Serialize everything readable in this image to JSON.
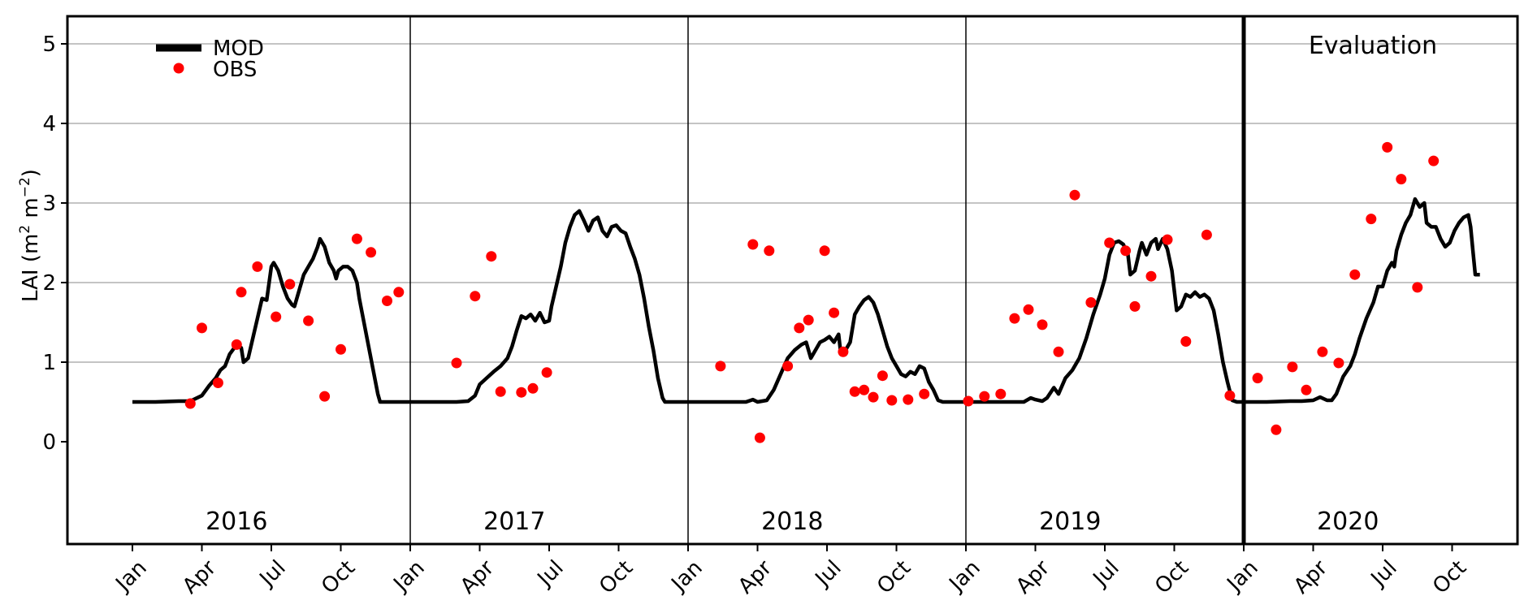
{
  "chart_data": {
    "type": "line",
    "title": "",
    "ylabel": {
      "text": "LAI (m",
      "sup1": "2",
      "mid": " m",
      "sup2": "−2",
      "end": ")"
    },
    "xlabel": "",
    "ylim": [
      -1.3,
      5.3
    ],
    "yticks": [
      0,
      1,
      2,
      3,
      4,
      5
    ],
    "grid": "horizontal",
    "legend_position": "top-left",
    "legend": [
      {
        "name": "MOD",
        "style": "line"
      },
      {
        "name": "OBS",
        "style": "marker"
      }
    ],
    "colors": {
      "mod": "#000000",
      "obs": "#ff0000",
      "grid": "#b0b0b0"
    },
    "year_panels": [
      "2016",
      "2017",
      "2018",
      "2019",
      "2020"
    ],
    "annotation": "Evaluation",
    "xticks": [
      {
        "t": 0,
        "label": "Jan"
      },
      {
        "t": 3,
        "label": "Apr"
      },
      {
        "t": 6,
        "label": "Jul"
      },
      {
        "t": 9,
        "label": "Oct"
      },
      {
        "t": 12,
        "label": "Jan"
      },
      {
        "t": 15,
        "label": "Apr"
      },
      {
        "t": 18,
        "label": "Jul"
      },
      {
        "t": 21,
        "label": "Oct"
      },
      {
        "t": 24,
        "label": "Jan"
      },
      {
        "t": 27,
        "label": "Apr"
      },
      {
        "t": 30,
        "label": "Jul"
      },
      {
        "t": 33,
        "label": "Oct"
      },
      {
        "t": 36,
        "label": "Jan"
      },
      {
        "t": 39,
        "label": "Apr"
      },
      {
        "t": 42,
        "label": "Jul"
      },
      {
        "t": 45,
        "label": "Oct"
      },
      {
        "t": 48,
        "label": "Jan"
      },
      {
        "t": 51,
        "label": "Apr"
      },
      {
        "t": 54,
        "label": "Jul"
      },
      {
        "t": 57,
        "label": "Oct"
      }
    ],
    "year_boundaries": [
      12,
      24,
      36
    ],
    "evaluation_boundary": 48,
    "series": [
      {
        "name": "MOD",
        "points": [
          [
            0.0,
            0.5
          ],
          [
            1.0,
            0.5
          ],
          [
            2.0,
            0.51
          ],
          [
            2.5,
            0.51
          ],
          [
            3.0,
            0.58
          ],
          [
            3.3,
            0.7
          ],
          [
            3.6,
            0.8
          ],
          [
            3.8,
            0.9
          ],
          [
            4.0,
            0.95
          ],
          [
            4.2,
            1.1
          ],
          [
            4.5,
            1.22
          ],
          [
            4.7,
            1.18
          ],
          [
            4.8,
            1.0
          ],
          [
            5.0,
            1.05
          ],
          [
            5.2,
            1.3
          ],
          [
            5.4,
            1.55
          ],
          [
            5.6,
            1.8
          ],
          [
            5.8,
            1.78
          ],
          [
            6.0,
            2.2
          ],
          [
            6.1,
            2.25
          ],
          [
            6.3,
            2.15
          ],
          [
            6.5,
            1.95
          ],
          [
            6.7,
            1.8
          ],
          [
            6.9,
            1.72
          ],
          [
            7.0,
            1.7
          ],
          [
            7.2,
            1.9
          ],
          [
            7.4,
            2.1
          ],
          [
            7.6,
            2.2
          ],
          [
            7.8,
            2.3
          ],
          [
            8.0,
            2.45
          ],
          [
            8.1,
            2.55
          ],
          [
            8.3,
            2.45
          ],
          [
            8.5,
            2.25
          ],
          [
            8.7,
            2.15
          ],
          [
            8.8,
            2.05
          ],
          [
            8.9,
            2.15
          ],
          [
            9.1,
            2.2
          ],
          [
            9.3,
            2.2
          ],
          [
            9.5,
            2.15
          ],
          [
            9.7,
            2.0
          ],
          [
            9.8,
            1.8
          ],
          [
            10.0,
            1.5
          ],
          [
            10.2,
            1.2
          ],
          [
            10.4,
            0.9
          ],
          [
            10.6,
            0.6
          ],
          [
            10.7,
            0.5
          ],
          [
            11.0,
            0.5
          ],
          [
            12.0,
            0.5
          ],
          [
            13.0,
            0.5
          ],
          [
            14.0,
            0.5
          ],
          [
            14.5,
            0.51
          ],
          [
            14.8,
            0.58
          ],
          [
            15.0,
            0.72
          ],
          [
            15.3,
            0.8
          ],
          [
            15.6,
            0.88
          ],
          [
            15.9,
            0.95
          ],
          [
            16.2,
            1.05
          ],
          [
            16.4,
            1.2
          ],
          [
            16.6,
            1.4
          ],
          [
            16.8,
            1.58
          ],
          [
            17.0,
            1.55
          ],
          [
            17.2,
            1.6
          ],
          [
            17.4,
            1.52
          ],
          [
            17.6,
            1.62
          ],
          [
            17.8,
            1.5
          ],
          [
            18.0,
            1.52
          ],
          [
            18.1,
            1.7
          ],
          [
            18.3,
            1.95
          ],
          [
            18.5,
            2.2
          ],
          [
            18.7,
            2.5
          ],
          [
            18.9,
            2.7
          ],
          [
            19.1,
            2.85
          ],
          [
            19.3,
            2.9
          ],
          [
            19.5,
            2.78
          ],
          [
            19.7,
            2.65
          ],
          [
            19.9,
            2.78
          ],
          [
            20.1,
            2.82
          ],
          [
            20.3,
            2.65
          ],
          [
            20.5,
            2.58
          ],
          [
            20.7,
            2.7
          ],
          [
            20.9,
            2.72
          ],
          [
            21.1,
            2.65
          ],
          [
            21.3,
            2.62
          ],
          [
            21.5,
            2.45
          ],
          [
            21.7,
            2.3
          ],
          [
            21.9,
            2.1
          ],
          [
            22.1,
            1.8
          ],
          [
            22.3,
            1.45
          ],
          [
            22.5,
            1.15
          ],
          [
            22.7,
            0.8
          ],
          [
            22.9,
            0.55
          ],
          [
            23.0,
            0.5
          ],
          [
            24.0,
            0.5
          ],
          [
            25.0,
            0.5
          ],
          [
            26.0,
            0.5
          ],
          [
            26.5,
            0.5
          ],
          [
            26.8,
            0.53
          ],
          [
            27.0,
            0.5
          ],
          [
            27.4,
            0.52
          ],
          [
            27.7,
            0.65
          ],
          [
            28.0,
            0.85
          ],
          [
            28.3,
            1.05
          ],
          [
            28.6,
            1.15
          ],
          [
            28.9,
            1.22
          ],
          [
            29.1,
            1.25
          ],
          [
            29.3,
            1.05
          ],
          [
            29.5,
            1.15
          ],
          [
            29.7,
            1.25
          ],
          [
            29.9,
            1.28
          ],
          [
            30.1,
            1.32
          ],
          [
            30.3,
            1.25
          ],
          [
            30.5,
            1.35
          ],
          [
            30.6,
            1.1
          ],
          [
            30.8,
            1.15
          ],
          [
            31.0,
            1.25
          ],
          [
            31.2,
            1.6
          ],
          [
            31.4,
            1.7
          ],
          [
            31.6,
            1.78
          ],
          [
            31.8,
            1.82
          ],
          [
            32.0,
            1.75
          ],
          [
            32.2,
            1.6
          ],
          [
            32.4,
            1.4
          ],
          [
            32.6,
            1.2
          ],
          [
            32.8,
            1.05
          ],
          [
            33.0,
            0.95
          ],
          [
            33.2,
            0.85
          ],
          [
            33.4,
            0.82
          ],
          [
            33.6,
            0.88
          ],
          [
            33.8,
            0.85
          ],
          [
            34.0,
            0.95
          ],
          [
            34.2,
            0.92
          ],
          [
            34.4,
            0.75
          ],
          [
            34.6,
            0.65
          ],
          [
            34.8,
            0.52
          ],
          [
            35.0,
            0.5
          ],
          [
            36.0,
            0.5
          ],
          [
            37.0,
            0.5
          ],
          [
            38.0,
            0.5
          ],
          [
            38.5,
            0.5
          ],
          [
            38.8,
            0.55
          ],
          [
            39.0,
            0.53
          ],
          [
            39.3,
            0.51
          ],
          [
            39.5,
            0.55
          ],
          [
            39.8,
            0.68
          ],
          [
            40.0,
            0.6
          ],
          [
            40.3,
            0.8
          ],
          [
            40.6,
            0.9
          ],
          [
            40.9,
            1.05
          ],
          [
            41.2,
            1.3
          ],
          [
            41.5,
            1.6
          ],
          [
            41.8,
            1.85
          ],
          [
            42.0,
            2.05
          ],
          [
            42.2,
            2.35
          ],
          [
            42.4,
            2.5
          ],
          [
            42.6,
            2.52
          ],
          [
            42.8,
            2.48
          ],
          [
            43.0,
            2.35
          ],
          [
            43.1,
            2.1
          ],
          [
            43.3,
            2.15
          ],
          [
            43.5,
            2.4
          ],
          [
            43.6,
            2.5
          ],
          [
            43.8,
            2.35
          ],
          [
            44.0,
            2.5
          ],
          [
            44.2,
            2.55
          ],
          [
            44.3,
            2.42
          ],
          [
            44.5,
            2.55
          ],
          [
            44.7,
            2.42
          ],
          [
            44.9,
            2.15
          ],
          [
            45.0,
            1.9
          ],
          [
            45.1,
            1.65
          ],
          [
            45.3,
            1.7
          ],
          [
            45.5,
            1.85
          ],
          [
            45.7,
            1.82
          ],
          [
            45.9,
            1.88
          ],
          [
            46.1,
            1.82
          ],
          [
            46.3,
            1.85
          ],
          [
            46.5,
            1.8
          ],
          [
            46.7,
            1.65
          ],
          [
            46.9,
            1.35
          ],
          [
            47.1,
            1.0
          ],
          [
            47.3,
            0.75
          ],
          [
            47.5,
            0.52
          ],
          [
            47.7,
            0.5
          ],
          [
            48.0,
            0.5
          ],
          [
            49.0,
            0.5
          ],
          [
            50.0,
            0.51
          ],
          [
            50.5,
            0.51
          ],
          [
            51.0,
            0.52
          ],
          [
            51.3,
            0.56
          ],
          [
            51.6,
            0.52
          ],
          [
            51.8,
            0.52
          ],
          [
            52.0,
            0.6
          ],
          [
            52.3,
            0.82
          ],
          [
            52.6,
            0.95
          ],
          [
            52.8,
            1.1
          ],
          [
            53.0,
            1.3
          ],
          [
            53.3,
            1.55
          ],
          [
            53.6,
            1.75
          ],
          [
            53.8,
            1.95
          ],
          [
            54.0,
            1.95
          ],
          [
            54.2,
            2.15
          ],
          [
            54.4,
            2.25
          ],
          [
            54.5,
            2.2
          ],
          [
            54.6,
            2.4
          ],
          [
            54.8,
            2.6
          ],
          [
            55.0,
            2.75
          ],
          [
            55.2,
            2.85
          ],
          [
            55.4,
            3.05
          ],
          [
            55.6,
            2.95
          ],
          [
            55.8,
            3.0
          ],
          [
            55.9,
            2.75
          ],
          [
            56.1,
            2.7
          ],
          [
            56.3,
            2.7
          ],
          [
            56.5,
            2.55
          ],
          [
            56.7,
            2.45
          ],
          [
            56.9,
            2.5
          ],
          [
            57.1,
            2.65
          ],
          [
            57.3,
            2.75
          ],
          [
            57.5,
            2.82
          ],
          [
            57.7,
            2.85
          ],
          [
            57.8,
            2.7
          ],
          [
            57.9,
            2.4
          ],
          [
            58.0,
            2.1
          ],
          [
            58.2,
            2.1
          ]
        ]
      },
      {
        "name": "OBS",
        "points": [
          [
            2.5,
            0.48
          ],
          [
            3.0,
            1.43
          ],
          [
            3.7,
            0.74
          ],
          [
            4.5,
            1.22
          ],
          [
            4.7,
            1.88
          ],
          [
            5.4,
            2.2
          ],
          [
            6.2,
            1.57
          ],
          [
            6.8,
            1.98
          ],
          [
            7.6,
            1.52
          ],
          [
            8.3,
            0.57
          ],
          [
            9.0,
            1.16
          ],
          [
            9.7,
            2.55
          ],
          [
            10.3,
            2.38
          ],
          [
            11.0,
            1.77
          ],
          [
            11.5,
            1.88
          ],
          [
            14.0,
            0.99
          ],
          [
            14.8,
            1.83
          ],
          [
            15.5,
            2.33
          ],
          [
            15.9,
            0.63
          ],
          [
            16.8,
            0.62
          ],
          [
            17.3,
            0.67
          ],
          [
            17.9,
            0.87
          ],
          [
            25.4,
            0.95
          ],
          [
            26.8,
            2.48
          ],
          [
            27.1,
            0.05
          ],
          [
            27.5,
            2.4
          ],
          [
            28.3,
            0.95
          ],
          [
            28.8,
            1.43
          ],
          [
            29.2,
            1.53
          ],
          [
            29.9,
            2.4
          ],
          [
            30.3,
            1.62
          ],
          [
            30.7,
            1.13
          ],
          [
            31.2,
            0.63
          ],
          [
            31.6,
            0.65
          ],
          [
            32.0,
            0.56
          ],
          [
            32.4,
            0.83
          ],
          [
            32.8,
            0.52
          ],
          [
            33.5,
            0.53
          ],
          [
            34.2,
            0.6
          ],
          [
            36.1,
            0.51
          ],
          [
            36.8,
            0.57
          ],
          [
            37.5,
            0.6
          ],
          [
            38.1,
            1.55
          ],
          [
            38.7,
            1.66
          ],
          [
            39.3,
            1.47
          ],
          [
            40.0,
            1.13
          ],
          [
            40.7,
            3.1
          ],
          [
            41.4,
            1.75
          ],
          [
            42.2,
            2.5
          ],
          [
            42.9,
            2.4
          ],
          [
            43.3,
            1.7
          ],
          [
            44.0,
            2.08
          ],
          [
            44.7,
            2.54
          ],
          [
            45.5,
            1.26
          ],
          [
            46.4,
            2.6
          ],
          [
            47.4,
            0.58
          ],
          [
            48.6,
            0.8
          ],
          [
            49.4,
            0.15
          ],
          [
            50.1,
            0.94
          ],
          [
            50.7,
            0.65
          ],
          [
            51.4,
            1.13
          ],
          [
            52.1,
            0.99
          ],
          [
            52.8,
            2.1
          ],
          [
            53.5,
            2.8
          ],
          [
            54.2,
            3.7
          ],
          [
            54.8,
            3.3
          ],
          [
            55.5,
            1.94
          ],
          [
            56.2,
            3.53
          ]
        ]
      }
    ]
  }
}
